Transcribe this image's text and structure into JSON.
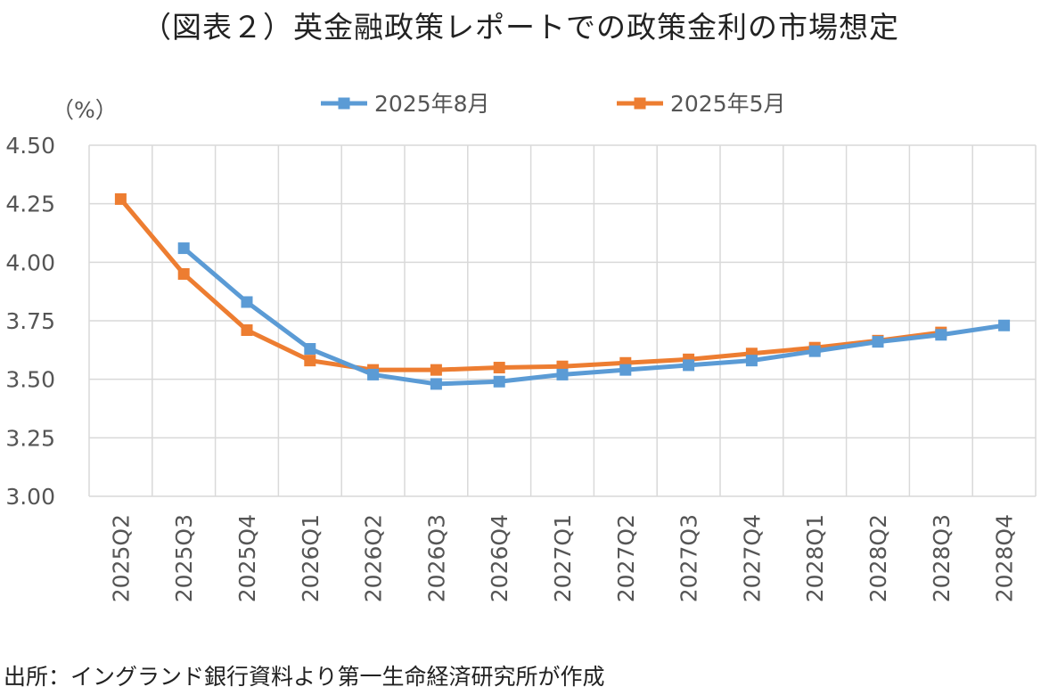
{
  "title": "（図表２）英金融政策レポートでの政策金利の市場想定",
  "source": "出所：イングランド銀行資料より第一生命経済研究所が作成",
  "chart_data": {
    "type": "line",
    "ylabel": "（%）",
    "ylim": [
      3.0,
      4.5
    ],
    "yticks": [
      "3.00",
      "3.25",
      "3.50",
      "3.75",
      "4.00",
      "4.25",
      "4.50"
    ],
    "categories": [
      "2025Q2",
      "2025Q3",
      "2025Q4",
      "2026Q1",
      "2026Q2",
      "2026Q3",
      "2026Q4",
      "2027Q1",
      "2027Q2",
      "2027Q3",
      "2027Q4",
      "2028Q1",
      "2028Q2",
      "2028Q3",
      "2028Q4"
    ],
    "grid": true,
    "legend_position": "top",
    "series": [
      {
        "name": "2025年8月",
        "color": "#5b9bd5",
        "values": [
          null,
          4.06,
          3.83,
          3.63,
          3.52,
          3.48,
          3.49,
          3.52,
          3.54,
          3.56,
          3.58,
          3.62,
          3.66,
          3.69,
          3.73
        ]
      },
      {
        "name": "2025年5月",
        "color": "#ed7d31",
        "values": [
          4.27,
          3.95,
          3.71,
          3.58,
          3.54,
          3.54,
          3.55,
          3.555,
          3.57,
          3.585,
          3.61,
          3.635,
          3.665,
          3.7,
          null
        ]
      }
    ]
  }
}
